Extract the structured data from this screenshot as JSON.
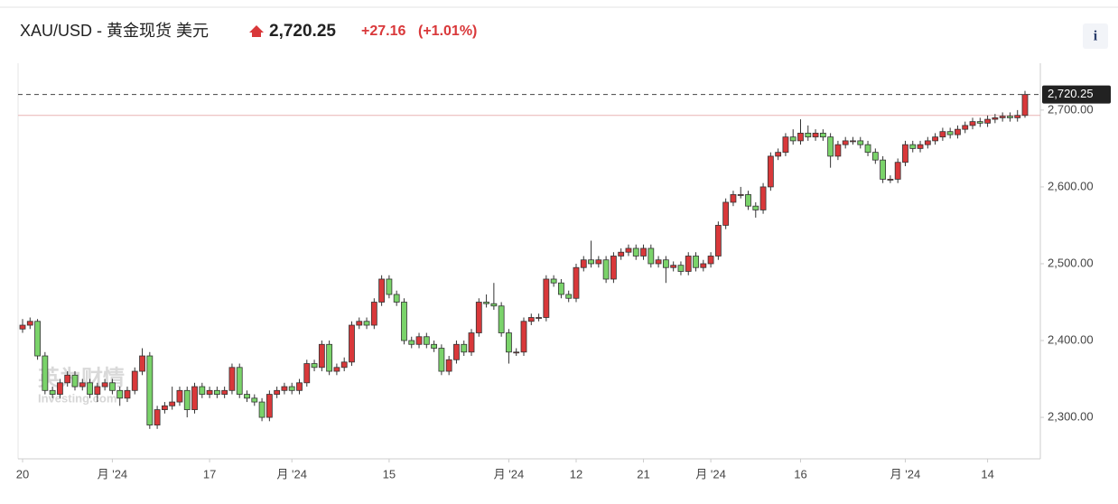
{
  "header": {
    "symbol": "XAU/USD - 黄金现货 美元",
    "change": "+27.16",
    "change_pct": "(+1.01%)",
    "info": "i"
  },
  "watermark": {
    "cn": "英为财情",
    "en": "Investing.com"
  },
  "chart_data": {
    "type": "candlestick",
    "up_color": "#d9383a",
    "down_color": "#7ad36a",
    "ylim": [
      2246,
      2761
    ],
    "yticks": [
      {
        "value": 2300,
        "label": "2,300.00"
      },
      {
        "value": 2400,
        "label": "2,400.00"
      },
      {
        "value": 2500,
        "label": "2,500.00"
      },
      {
        "value": 2600,
        "label": "2,600.00"
      },
      {
        "value": 2700,
        "label": "2,700.00"
      }
    ],
    "grid": false,
    "last_price": {
      "value": 2720.25,
      "label": "2,720.25"
    },
    "prev_close": 2693.09,
    "categories": [
      "20",
      null,
      null,
      null,
      null,
      null,
      null,
      null,
      null,
      null,
      null,
      null,
      "月 '24",
      null,
      null,
      null,
      null,
      null,
      null,
      null,
      null,
      null,
      null,
      null,
      null,
      "17",
      null,
      null,
      null,
      null,
      null,
      null,
      null,
      null,
      null,
      null,
      "月 '24",
      null,
      null,
      null,
      null,
      null,
      null,
      null,
      null,
      null,
      null,
      null,
      null,
      "15",
      null,
      null,
      null,
      null,
      null,
      null,
      null,
      null,
      null,
      null,
      null,
      null,
      null,
      null,
      null,
      "月 '24",
      null,
      null,
      null,
      null,
      null,
      null,
      null,
      null,
      "12",
      null,
      null,
      null,
      null,
      null,
      null,
      null,
      null,
      "21",
      null,
      null,
      null,
      null,
      null,
      null,
      null,
      null,
      "月 '24",
      null,
      null,
      null,
      null,
      null,
      null,
      null,
      null,
      null,
      null,
      null,
      "16",
      null,
      null,
      null,
      null,
      null,
      null,
      null,
      null,
      null,
      null,
      null,
      null,
      null,
      "月 '24",
      null,
      null,
      null,
      null,
      null,
      null,
      null,
      null,
      null,
      null,
      "14",
      null,
      null,
      null,
      null,
      null
    ],
    "ohlc": [
      [
        2415,
        2428,
        2410,
        2420
      ],
      [
        2420,
        2430,
        2415,
        2425
      ],
      [
        2425,
        2428,
        2375,
        2380
      ],
      [
        2380,
        2385,
        2330,
        2335
      ],
      [
        2335,
        2340,
        2325,
        2330
      ],
      [
        2330,
        2350,
        2325,
        2345
      ],
      [
        2345,
        2360,
        2340,
        2355
      ],
      [
        2355,
        2360,
        2335,
        2340
      ],
      [
        2340,
        2350,
        2335,
        2345
      ],
      [
        2345,
        2350,
        2325,
        2330
      ],
      [
        2330,
        2345,
        2320,
        2340
      ],
      [
        2340,
        2350,
        2335,
        2345
      ],
      [
        2345,
        2350,
        2330,
        2335
      ],
      [
        2335,
        2340,
        2315,
        2325
      ],
      [
        2325,
        2340,
        2320,
        2335
      ],
      [
        2335,
        2365,
        2330,
        2360
      ],
      [
        2360,
        2390,
        2355,
        2380
      ],
      [
        2380,
        2385,
        2285,
        2290
      ],
      [
        2290,
        2315,
        2285,
        2310
      ],
      [
        2310,
        2320,
        2305,
        2315
      ],
      [
        2315,
        2340,
        2310,
        2320
      ],
      [
        2320,
        2340,
        2315,
        2335
      ],
      [
        2335,
        2340,
        2300,
        2310
      ],
      [
        2310,
        2345,
        2305,
        2340
      ],
      [
        2340,
        2345,
        2325,
        2330
      ],
      [
        2330,
        2340,
        2325,
        2335
      ],
      [
        2335,
        2340,
        2325,
        2330
      ],
      [
        2330,
        2340,
        2325,
        2335
      ],
      [
        2335,
        2370,
        2330,
        2365
      ],
      [
        2365,
        2370,
        2325,
        2330
      ],
      [
        2330,
        2335,
        2320,
        2325
      ],
      [
        2325,
        2330,
        2315,
        2320
      ],
      [
        2320,
        2325,
        2295,
        2300
      ],
      [
        2300,
        2335,
        2295,
        2330
      ],
      [
        2330,
        2340,
        2325,
        2335
      ],
      [
        2335,
        2345,
        2330,
        2340
      ],
      [
        2340,
        2345,
        2330,
        2335
      ],
      [
        2335,
        2350,
        2330,
        2345
      ],
      [
        2345,
        2375,
        2340,
        2370
      ],
      [
        2370,
        2375,
        2360,
        2365
      ],
      [
        2365,
        2400,
        2360,
        2395
      ],
      [
        2395,
        2400,
        2355,
        2360
      ],
      [
        2360,
        2370,
        2355,
        2365
      ],
      [
        2365,
        2378,
        2360,
        2372
      ],
      [
        2372,
        2425,
        2367,
        2420
      ],
      [
        2420,
        2430,
        2415,
        2425
      ],
      [
        2425,
        2430,
        2415,
        2420
      ],
      [
        2420,
        2455,
        2415,
        2450
      ],
      [
        2450,
        2485,
        2445,
        2480
      ],
      [
        2480,
        2485,
        2455,
        2460
      ],
      [
        2460,
        2465,
        2445,
        2450
      ],
      [
        2450,
        2455,
        2395,
        2400
      ],
      [
        2400,
        2405,
        2390,
        2395
      ],
      [
        2395,
        2410,
        2390,
        2405
      ],
      [
        2405,
        2410,
        2390,
        2395
      ],
      [
        2395,
        2400,
        2385,
        2390
      ],
      [
        2390,
        2395,
        2355,
        2360
      ],
      [
        2360,
        2380,
        2355,
        2375
      ],
      [
        2375,
        2400,
        2370,
        2395
      ],
      [
        2395,
        2400,
        2380,
        2385
      ],
      [
        2385,
        2415,
        2380,
        2410
      ],
      [
        2410,
        2455,
        2405,
        2450
      ],
      [
        2450,
        2460,
        2443,
        2448
      ],
      [
        2448,
        2475,
        2440,
        2445
      ],
      [
        2445,
        2450,
        2405,
        2410
      ],
      [
        2410,
        2415,
        2370,
        2385
      ],
      [
        2385,
        2390,
        2380,
        2385
      ],
      [
        2385,
        2430,
        2380,
        2425
      ],
      [
        2425,
        2435,
        2420,
        2430
      ],
      [
        2430,
        2435,
        2425,
        2430
      ],
      [
        2430,
        2485,
        2425,
        2480
      ],
      [
        2480,
        2485,
        2470,
        2475
      ],
      [
        2475,
        2480,
        2455,
        2460
      ],
      [
        2460,
        2465,
        2450,
        2455
      ],
      [
        2455,
        2500,
        2450,
        2495
      ],
      [
        2495,
        2510,
        2490,
        2505
      ],
      [
        2505,
        2530,
        2495,
        2500
      ],
      [
        2500,
        2510,
        2495,
        2505
      ],
      [
        2505,
        2510,
        2475,
        2480
      ],
      [
        2480,
        2515,
        2475,
        2510
      ],
      [
        2510,
        2520,
        2505,
        2515
      ],
      [
        2515,
        2525,
        2510,
        2520
      ],
      [
        2520,
        2525,
        2505,
        2510
      ],
      [
        2510,
        2525,
        2505,
        2520
      ],
      [
        2520,
        2525,
        2495,
        2500
      ],
      [
        2500,
        2510,
        2495,
        2505
      ],
      [
        2505,
        2510,
        2475,
        2495
      ],
      [
        2495,
        2503,
        2490,
        2498
      ],
      [
        2498,
        2503,
        2485,
        2490
      ],
      [
        2490,
        2515,
        2485,
        2510
      ],
      [
        2510,
        2515,
        2490,
        2495
      ],
      [
        2495,
        2505,
        2490,
        2500
      ],
      [
        2500,
        2515,
        2495,
        2510
      ],
      [
        2510,
        2555,
        2505,
        2550
      ],
      [
        2550,
        2585,
        2545,
        2580
      ],
      [
        2580,
        2595,
        2575,
        2590
      ],
      [
        2590,
        2600,
        2585,
        2590
      ],
      [
        2590,
        2595,
        2570,
        2575
      ],
      [
        2575,
        2580,
        2560,
        2570
      ],
      [
        2570,
        2605,
        2565,
        2600
      ],
      [
        2600,
        2645,
        2595,
        2640
      ],
      [
        2640,
        2650,
        2635,
        2645
      ],
      [
        2645,
        2670,
        2640,
        2665
      ],
      [
        2665,
        2675,
        2655,
        2660
      ],
      [
        2660,
        2688,
        2655,
        2670
      ],
      [
        2670,
        2680,
        2660,
        2665
      ],
      [
        2665,
        2675,
        2660,
        2670
      ],
      [
        2670,
        2675,
        2660,
        2665
      ],
      [
        2665,
        2670,
        2625,
        2640
      ],
      [
        2640,
        2660,
        2635,
        2655
      ],
      [
        2655,
        2665,
        2650,
        2660
      ],
      [
        2660,
        2665,
        2655,
        2660
      ],
      [
        2660,
        2665,
        2650,
        2655
      ],
      [
        2655,
        2660,
        2640,
        2645
      ],
      [
        2645,
        2650,
        2630,
        2635
      ],
      [
        2635,
        2640,
        2605,
        2610
      ],
      [
        2610,
        2615,
        2605,
        2610
      ],
      [
        2610,
        2637,
        2605,
        2632
      ],
      [
        2632,
        2660,
        2627,
        2655
      ],
      [
        2655,
        2660,
        2645,
        2650
      ],
      [
        2650,
        2660,
        2645,
        2655
      ],
      [
        2655,
        2665,
        2650,
        2660
      ],
      [
        2660,
        2670,
        2655,
        2665
      ],
      [
        2665,
        2677,
        2660,
        2672
      ],
      [
        2672,
        2677,
        2663,
        2668
      ],
      [
        2668,
        2680,
        2663,
        2675
      ],
      [
        2675,
        2685,
        2670,
        2680
      ],
      [
        2680,
        2690,
        2675,
        2685
      ],
      [
        2685,
        2690,
        2678,
        2683
      ],
      [
        2683,
        2693,
        2678,
        2688
      ],
      [
        2688,
        2695,
        2683,
        2690
      ],
      [
        2690,
        2697,
        2685,
        2692
      ],
      [
        2692,
        2697,
        2685,
        2690
      ],
      [
        2690,
        2700,
        2685,
        2693.09
      ],
      [
        2693.09,
        2725,
        2690,
        2720.25
      ]
    ]
  }
}
